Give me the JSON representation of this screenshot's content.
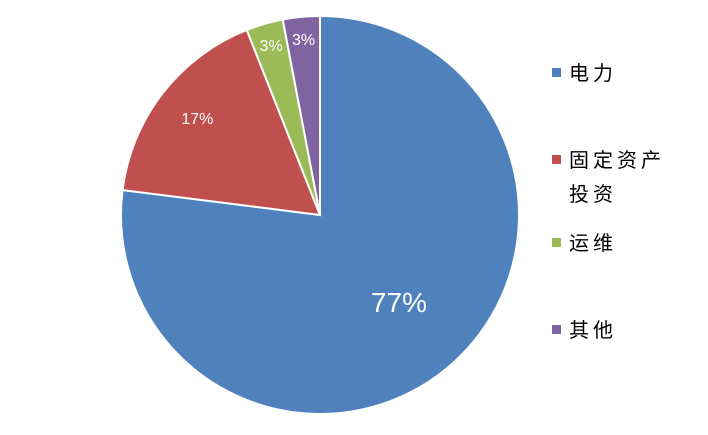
{
  "chart_data": {
    "type": "pie",
    "categories": [
      "电力",
      "固定资产投资",
      "运维",
      "其他"
    ],
    "values": [
      77,
      17,
      3,
      3
    ],
    "value_labels": [
      "77%",
      "17%",
      "3%",
      "3%"
    ],
    "colors": [
      "#4f81bd",
      "#c0504d",
      "#9bbb59",
      "#8064a2"
    ],
    "legend": "right"
  }
}
